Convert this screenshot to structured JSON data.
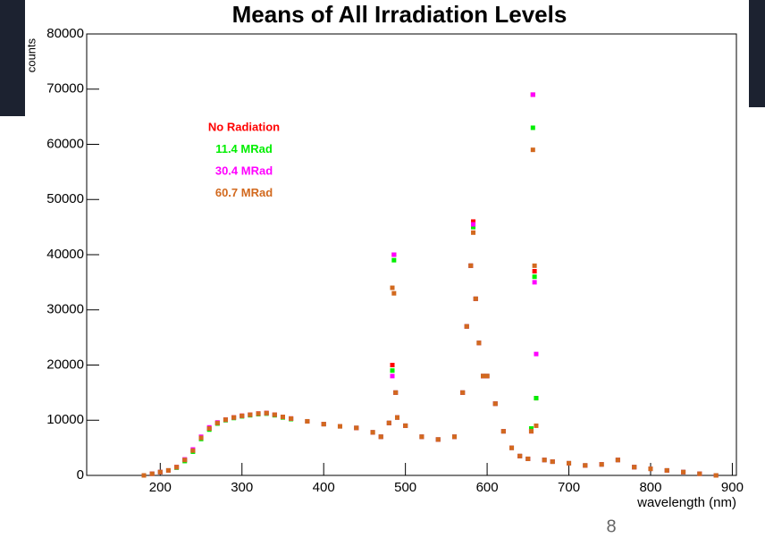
{
  "chart_data": {
    "type": "scatter",
    "title": "Means of All Irradiation Levels",
    "xlabel": "wavelength (nm)",
    "ylabel": "counts",
    "page_number": "8",
    "x": [
      180,
      190,
      200,
      210,
      220,
      230,
      240,
      250,
      260,
      270,
      280,
      290,
      300,
      310,
      320,
      330,
      340,
      350,
      360,
      380,
      400,
      420,
      440,
      460,
      470,
      480,
      484,
      486,
      488,
      490,
      500,
      520,
      540,
      560,
      570,
      575,
      580,
      583,
      586,
      590,
      595,
      600,
      610,
      620,
      630,
      640,
      650,
      654,
      656,
      658,
      660,
      670,
      680,
      700,
      720,
      740,
      760,
      780,
      800,
      820,
      840,
      860,
      880
    ],
    "series": [
      {
        "name": "No Radiation",
        "color": "#ff0000",
        "values": [
          0,
          300,
          600,
          900,
          1500,
          2800,
          4500,
          6800,
          8500,
          9500,
          10100,
          10500,
          10800,
          11000,
          11200,
          11300,
          11000,
          10600,
          10300,
          9800,
          9300,
          8900,
          8600,
          7800,
          7000,
          9500,
          20000,
          40000,
          15000,
          10500,
          9000,
          7000,
          6500,
          7000,
          15000,
          27000,
          38000,
          46000,
          32000,
          24000,
          18000,
          18000,
          13000,
          8000,
          5000,
          3500,
          3000,
          8000,
          69000,
          37000,
          14000,
          2800,
          2500,
          2200,
          1800,
          2000,
          2800,
          1500,
          1200,
          900,
          600,
          300,
          0
        ]
      },
      {
        "name": "11.4 MRad",
        "color": "#00ee00",
        "values": [
          0,
          300,
          600,
          900,
          1400,
          2600,
          4300,
          6600,
          8300,
          9400,
          10000,
          10400,
          10700,
          10900,
          11100,
          11200,
          10900,
          10500,
          10200,
          9800,
          9300,
          8900,
          8600,
          7800,
          7000,
          9500,
          19000,
          39000,
          15000,
          10500,
          9000,
          7000,
          6500,
          7000,
          15000,
          27000,
          38000,
          45000,
          32000,
          24000,
          18000,
          18000,
          13000,
          8000,
          5000,
          3500,
          3000,
          8500,
          63000,
          36000,
          14000,
          2800,
          2500,
          2200,
          1800,
          2000,
          2800,
          1500,
          1200,
          900,
          600,
          300,
          0
        ]
      },
      {
        "name": "30.4 MRad",
        "color": "#ff00ff",
        "values": [
          0,
          300,
          600,
          900,
          1500,
          2900,
          4700,
          7000,
          8700,
          9600,
          10100,
          10500,
          10800,
          11000,
          11200,
          11300,
          11000,
          10600,
          10300,
          9800,
          9300,
          8900,
          8600,
          7800,
          7000,
          9500,
          18000,
          40000,
          15000,
          10500,
          9000,
          7000,
          6500,
          7000,
          15000,
          27000,
          38000,
          45500,
          32000,
          24000,
          18000,
          18000,
          13000,
          8000,
          5000,
          3500,
          3000,
          8000,
          69000,
          35000,
          22000,
          2800,
          2500,
          2200,
          1800,
          2000,
          2800,
          1500,
          1200,
          900,
          600,
          300,
          0
        ]
      },
      {
        "name": "60.7 MRad",
        "color": "#d2691e",
        "values": [
          0,
          300,
          600,
          900,
          1500,
          2800,
          4500,
          6800,
          8500,
          9500,
          10100,
          10500,
          10800,
          11000,
          11200,
          11300,
          11000,
          10600,
          10300,
          9800,
          9300,
          8900,
          8600,
          7800,
          7000,
          9500,
          34000,
          33000,
          15000,
          10500,
          9000,
          7000,
          6500,
          7000,
          15000,
          27000,
          38000,
          44000,
          32000,
          24000,
          18000,
          18000,
          13000,
          8000,
          5000,
          3500,
          3000,
          8000,
          59000,
          38000,
          9000,
          2800,
          2500,
          2200,
          1800,
          2000,
          2800,
          1500,
          1200,
          900,
          600,
          300,
          0
        ]
      }
    ],
    "xlim": [
      110,
      905
    ],
    "ylim": [
      0,
      80000
    ],
    "xticks": [
      200,
      300,
      400,
      500,
      600,
      700,
      800,
      900
    ],
    "yticks": [
      0,
      10000,
      20000,
      30000,
      40000,
      50000,
      60000,
      70000,
      80000
    ]
  }
}
